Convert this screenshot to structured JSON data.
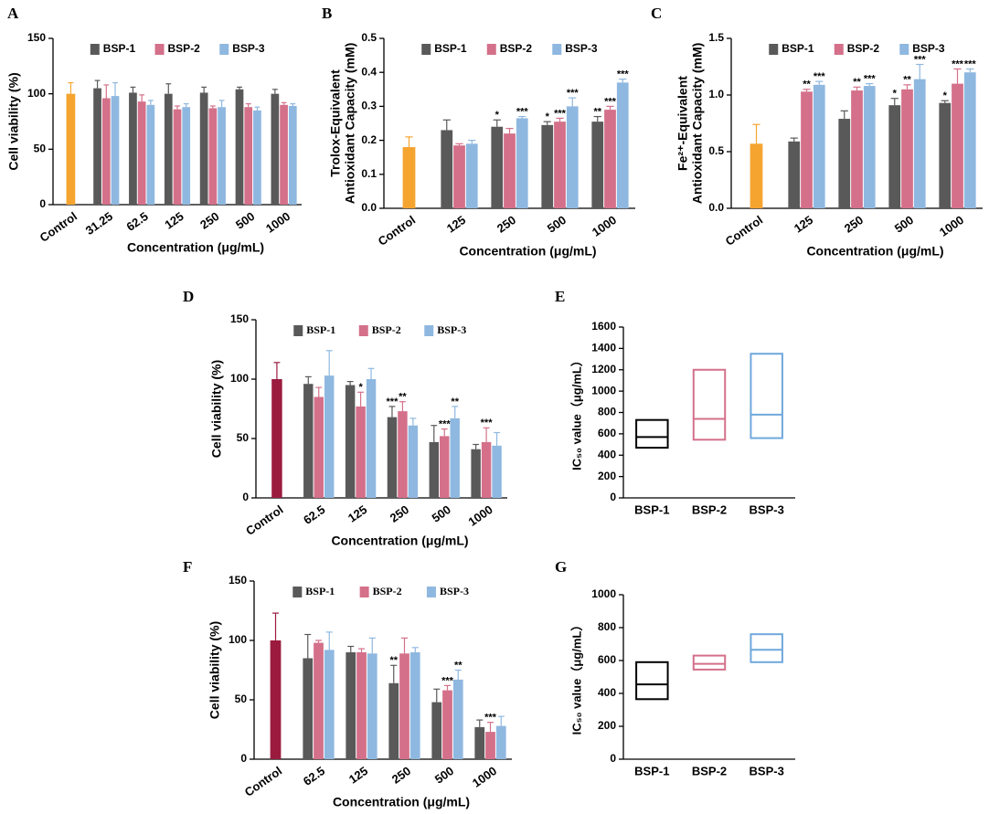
{
  "chart_data": [
    {
      "type": "bar",
      "panel": "A",
      "ylabel": [
        "Cell viability (%)"
      ],
      "xlabel": "Concentration (μg/mL)",
      "categories": [
        "Control",
        "31.25",
        "62.5",
        "125",
        "250",
        "500",
        "1000"
      ],
      "control": {
        "value": 100,
        "error": 10,
        "color": "#f5a430"
      },
      "series": [
        {
          "name": "BSP-1",
          "color": "#595959",
          "values": [
            null,
            105,
            101,
            100,
            101,
            104,
            100
          ],
          "errors": [
            null,
            7,
            5,
            9,
            5,
            2,
            4
          ],
          "annotations": [
            null,
            null,
            null,
            null,
            null,
            null,
            null
          ]
        },
        {
          "name": "BSP-2",
          "color": "#d4708a",
          "values": [
            null,
            96,
            93,
            86,
            87,
            88,
            90
          ],
          "errors": [
            null,
            12,
            6,
            3,
            2,
            3,
            2
          ],
          "annotations": [
            null,
            null,
            null,
            null,
            null,
            null,
            null
          ]
        },
        {
          "name": "BSP-3",
          "color": "#8fb8e0",
          "values": [
            null,
            98,
            90,
            88,
            88,
            85,
            89
          ],
          "errors": [
            null,
            12,
            4,
            3,
            6,
            3,
            2
          ],
          "annotations": [
            null,
            null,
            null,
            null,
            null,
            null,
            null
          ]
        }
      ],
      "ylim": [
        0,
        150
      ],
      "yticks": [
        0,
        50,
        100,
        150
      ]
    },
    {
      "type": "bar",
      "panel": "B",
      "ylabel": [
        "Trolox-Equivalent",
        "Antioxidant Capacity (mM)"
      ],
      "xlabel": "Concentration (μg/mL)",
      "categories": [
        "Control",
        "125",
        "250",
        "500",
        "1000"
      ],
      "control": {
        "value": 0.18,
        "error": 0.03,
        "color": "#f5a430"
      },
      "series": [
        {
          "name": "BSP-1",
          "color": "#595959",
          "values": [
            null,
            0.23,
            0.24,
            0.245,
            0.255
          ],
          "errors": [
            null,
            0.03,
            0.02,
            0.01,
            0.015
          ],
          "annotations": [
            null,
            null,
            "*",
            "*",
            "**"
          ]
        },
        {
          "name": "BSP-2",
          "color": "#d4708a",
          "values": [
            null,
            0.185,
            0.22,
            0.255,
            0.29
          ],
          "errors": [
            null,
            0.005,
            0.015,
            0.01,
            0.01
          ],
          "annotations": [
            null,
            null,
            null,
            "***",
            "***"
          ]
        },
        {
          "name": "BSP-3",
          "color": "#8fb8e0",
          "values": [
            null,
            0.19,
            0.265,
            0.3,
            0.37
          ],
          "errors": [
            null,
            0.01,
            0.005,
            0.025,
            0.01
          ],
          "annotations": [
            null,
            null,
            "***",
            "***",
            "***"
          ]
        }
      ],
      "ylim": [
        0,
        0.5
      ],
      "yticks": [
        {
          "value": 0,
          "label": "0.0"
        },
        0.1,
        0.2,
        0.3,
        0.4,
        0.5
      ]
    },
    {
      "type": "bar",
      "panel": "C",
      "ylabel": [
        "Fe²⁺-Equivalent",
        "Antioxidant Capacity (mM)"
      ],
      "xlabel": "Concentration (μg/mL)",
      "categories": [
        "Control",
        "125",
        "250",
        "500",
        "1000"
      ],
      "control": {
        "value": 0.57,
        "error": 0.17,
        "color": "#f5a430"
      },
      "series": [
        {
          "name": "BSP-1",
          "color": "#595959",
          "values": [
            null,
            0.59,
            0.79,
            0.91,
            0.93
          ],
          "errors": [
            null,
            0.03,
            0.07,
            0.06,
            0.02
          ],
          "annotations": [
            null,
            null,
            null,
            "*",
            "*"
          ]
        },
        {
          "name": "BSP-2",
          "color": "#d4708a",
          "values": [
            null,
            1.03,
            1.04,
            1.05,
            1.1
          ],
          "errors": [
            null,
            0.02,
            0.03,
            0.04,
            0.13
          ],
          "annotations": [
            null,
            "**",
            "**",
            "**",
            "***"
          ]
        },
        {
          "name": "BSP-3",
          "color": "#8fb8e0",
          "values": [
            null,
            1.09,
            1.08,
            1.14,
            1.2
          ],
          "errors": [
            null,
            0.03,
            0.02,
            0.13,
            0.03
          ],
          "annotations": [
            null,
            "***",
            "***",
            "***",
            "***"
          ]
        }
      ],
      "ylim": [
        0,
        1.5
      ],
      "yticks": [
        {
          "value": 0,
          "label": "0.0"
        },
        0.5,
        {
          "value": 1,
          "label": "1.0"
        },
        1.5
      ]
    },
    {
      "type": "bar",
      "panel": "D",
      "ylabel": [
        "Cell viability (%)"
      ],
      "xlabel": "Concentration (μg/mL)",
      "categories": [
        "Control",
        "62.5",
        "125",
        "250",
        "500",
        "1000"
      ],
      "control": {
        "value": 100,
        "error": 14,
        "color": "#9b1b3f"
      },
      "series": [
        {
          "name": "BSP-1",
          "color": "#595959",
          "values": [
            null,
            96,
            95,
            68,
            47,
            41
          ],
          "errors": [
            null,
            6,
            3,
            9,
            14,
            4
          ],
          "annotations": [
            null,
            null,
            null,
            "***",
            null,
            null
          ]
        },
        {
          "name": "BSP-2",
          "color": "#d4708a",
          "values": [
            null,
            85,
            77,
            73,
            52,
            47
          ],
          "errors": [
            null,
            8,
            12,
            8,
            6,
            12
          ],
          "annotations": [
            null,
            null,
            "*",
            "**",
            "***",
            "***"
          ]
        },
        {
          "name": "BSP-3",
          "color": "#8fb8e0",
          "values": [
            null,
            103,
            100,
            61,
            67,
            44
          ],
          "errors": [
            null,
            21,
            9,
            6,
            10,
            11
          ],
          "annotations": [
            null,
            null,
            null,
            null,
            "**",
            null
          ]
        }
      ],
      "ylim": [
        0,
        150
      ],
      "yticks": [
        0,
        50,
        100,
        150
      ]
    },
    {
      "type": "box",
      "panel": "E",
      "ylabel": "IC₅₀ value（μg/mL）",
      "categories": [
        "BSP-1",
        "BSP-2",
        "BSP-3"
      ],
      "low": [
        470,
        545,
        560
      ],
      "median": [
        570,
        740,
        780
      ],
      "high": [
        730,
        1200,
        1350
      ],
      "colors": [
        "#000000",
        "#d4708a",
        "#6fa8dc"
      ],
      "ylim": [
        0,
        1600
      ],
      "yticks": [
        0,
        200,
        400,
        600,
        800,
        1000,
        1200,
        1400,
        1600
      ]
    },
    {
      "type": "bar",
      "panel": "F",
      "ylabel": [
        "Cell viability (%)"
      ],
      "xlabel": "Concentration (μg/mL)",
      "categories": [
        "Control",
        "62.5",
        "125",
        "250",
        "500",
        "1000"
      ],
      "control": {
        "value": 100,
        "error": 23,
        "color": "#9b1b3f"
      },
      "series": [
        {
          "name": "BSP-1",
          "color": "#595959",
          "values": [
            null,
            85,
            90,
            64,
            48,
            27
          ],
          "errors": [
            null,
            20,
            5,
            15,
            11,
            6
          ],
          "annotations": [
            null,
            null,
            null,
            "**",
            null,
            null
          ]
        },
        {
          "name": "BSP-2",
          "color": "#d4708a",
          "values": [
            null,
            98,
            90,
            89,
            58,
            23
          ],
          "errors": [
            null,
            2,
            3,
            13,
            4,
            8
          ],
          "annotations": [
            null,
            null,
            null,
            null,
            "***",
            "***"
          ]
        },
        {
          "name": "BSP-3",
          "color": "#8fb8e0",
          "values": [
            null,
            92,
            89,
            90,
            67,
            28
          ],
          "errors": [
            null,
            15,
            13,
            4,
            8,
            8
          ],
          "annotations": [
            null,
            null,
            null,
            null,
            "**",
            null
          ]
        }
      ],
      "ylim": [
        0,
        150
      ],
      "yticks": [
        0,
        50,
        100,
        150
      ]
    },
    {
      "type": "box",
      "panel": "G",
      "ylabel": "IC₅₀ value（μg/mL）",
      "categories": [
        "BSP-1",
        "BSP-2",
        "BSP-3"
      ],
      "low": [
        365,
        545,
        590
      ],
      "median": [
        455,
        580,
        665
      ],
      "high": [
        590,
        630,
        760
      ],
      "colors": [
        "#000000",
        "#d4708a",
        "#6fa8dc"
      ],
      "ylim": [
        0,
        1000
      ],
      "yticks": [
        0,
        200,
        400,
        600,
        800,
        1000
      ]
    }
  ]
}
